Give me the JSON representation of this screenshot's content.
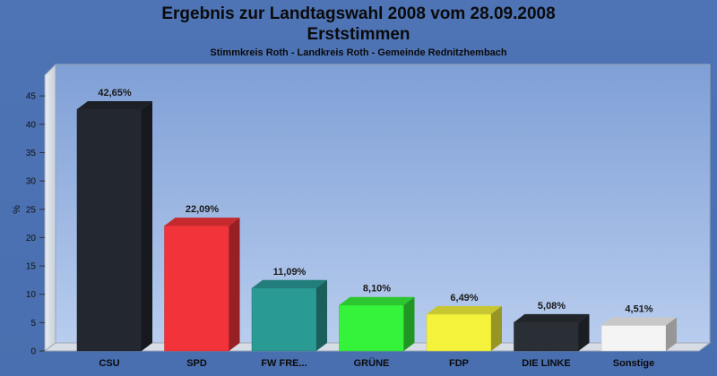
{
  "chart_data": {
    "type": "bar",
    "title_line1": "Ergebnis zur Landtagswahl 2008 vom 28.09.2008",
    "title_line2": "Erststimmen",
    "subtitle": "Stimmkreis Roth - Landkreis Roth - Gemeinde Rednitzhembach",
    "ylabel": "%",
    "ylim": [
      0,
      48
    ],
    "yticks": [
      "0",
      "5",
      "10",
      "15",
      "20",
      "25",
      "30",
      "35",
      "40",
      "45"
    ],
    "grid": false,
    "categories": [
      "CSU",
      "SPD",
      "FW FRE...",
      "GRÜNE",
      "FDP",
      "DIE LINKE",
      "Sonstige"
    ],
    "values": [
      42.65,
      22.09,
      11.09,
      8.1,
      6.49,
      5.08,
      4.51
    ],
    "value_labels": [
      "42,65%",
      "22,09%",
      "11,09%",
      "8,10%",
      "6,49%",
      "5,08%",
      "4,51%"
    ],
    "colors": [
      "#23272f",
      "#f23339",
      "#2a9a95",
      "#35f23b",
      "#f4f23a",
      "#2a2e35",
      "#f4f4f4"
    ]
  }
}
